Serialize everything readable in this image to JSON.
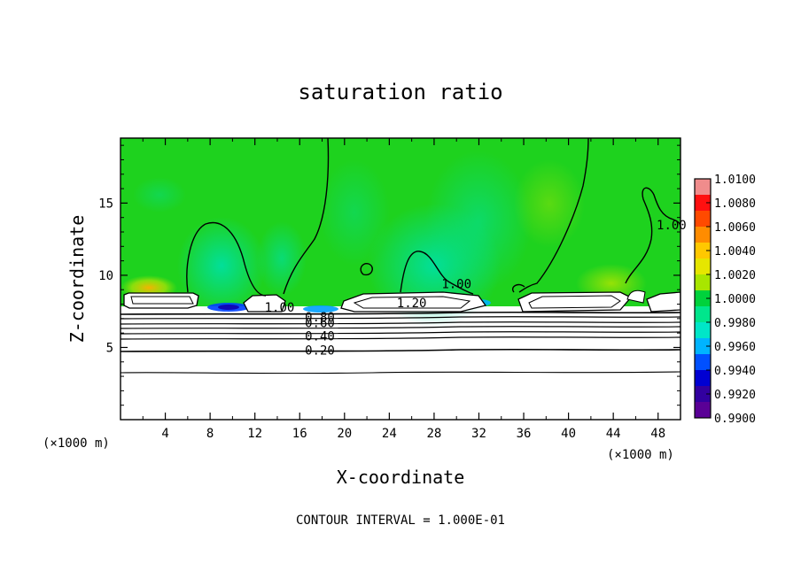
{
  "chart_data": {
    "type": "heatmap",
    "title": "saturation ratio",
    "xlabel": "X-coordinate",
    "ylabel": "Z-coordinate",
    "x_unit": "(×1000 m)",
    "y_unit": "(×1000 m)",
    "xlim": [
      0,
      50
    ],
    "ylim": [
      0,
      19.5
    ],
    "x_ticks": [
      4,
      8,
      12,
      16,
      20,
      24,
      28,
      32,
      36,
      40,
      44,
      48
    ],
    "y_ticks": [
      5,
      10,
      15
    ],
    "colorbar": {
      "min": 0.99,
      "max": 1.01,
      "ticks": [
        "1.0100",
        "1.0080",
        "1.0060",
        "1.0040",
        "1.0020",
        "1.0000",
        "0.9980",
        "0.9960",
        "0.9940",
        "0.9920",
        "0.9900"
      ],
      "colors": [
        "#f08c8c",
        "#ff1010",
        "#ff4a00",
        "#ff8c00",
        "#ffc800",
        "#e6e600",
        "#a8e600",
        "#00d23c",
        "#00e68c",
        "#00e6c8",
        "#00b4ff",
        "#0050ff",
        "#0000d2",
        "#3200a0",
        "#5a0096"
      ]
    },
    "contour_labels": [
      {
        "text": "1.00",
        "x": 14.2,
        "z": 7.8
      },
      {
        "text": "0.80",
        "x": 17.8,
        "z": 7.1
      },
      {
        "text": "0.60",
        "x": 17.8,
        "z": 6.7
      },
      {
        "text": "0.40",
        "x": 17.8,
        "z": 5.8
      },
      {
        "text": "0.20",
        "x": 17.8,
        "z": 4.8
      },
      {
        "text": "1.20",
        "x": 26.0,
        "z": 8.1
      },
      {
        "text": "1.00",
        "x": 30.0,
        "z": 9.4
      },
      {
        "text": "1.00",
        "x": 49.2,
        "z": 13.5
      }
    ],
    "contour_interval_label": "CONTOUR INTERVAL = 1.000E-01"
  }
}
